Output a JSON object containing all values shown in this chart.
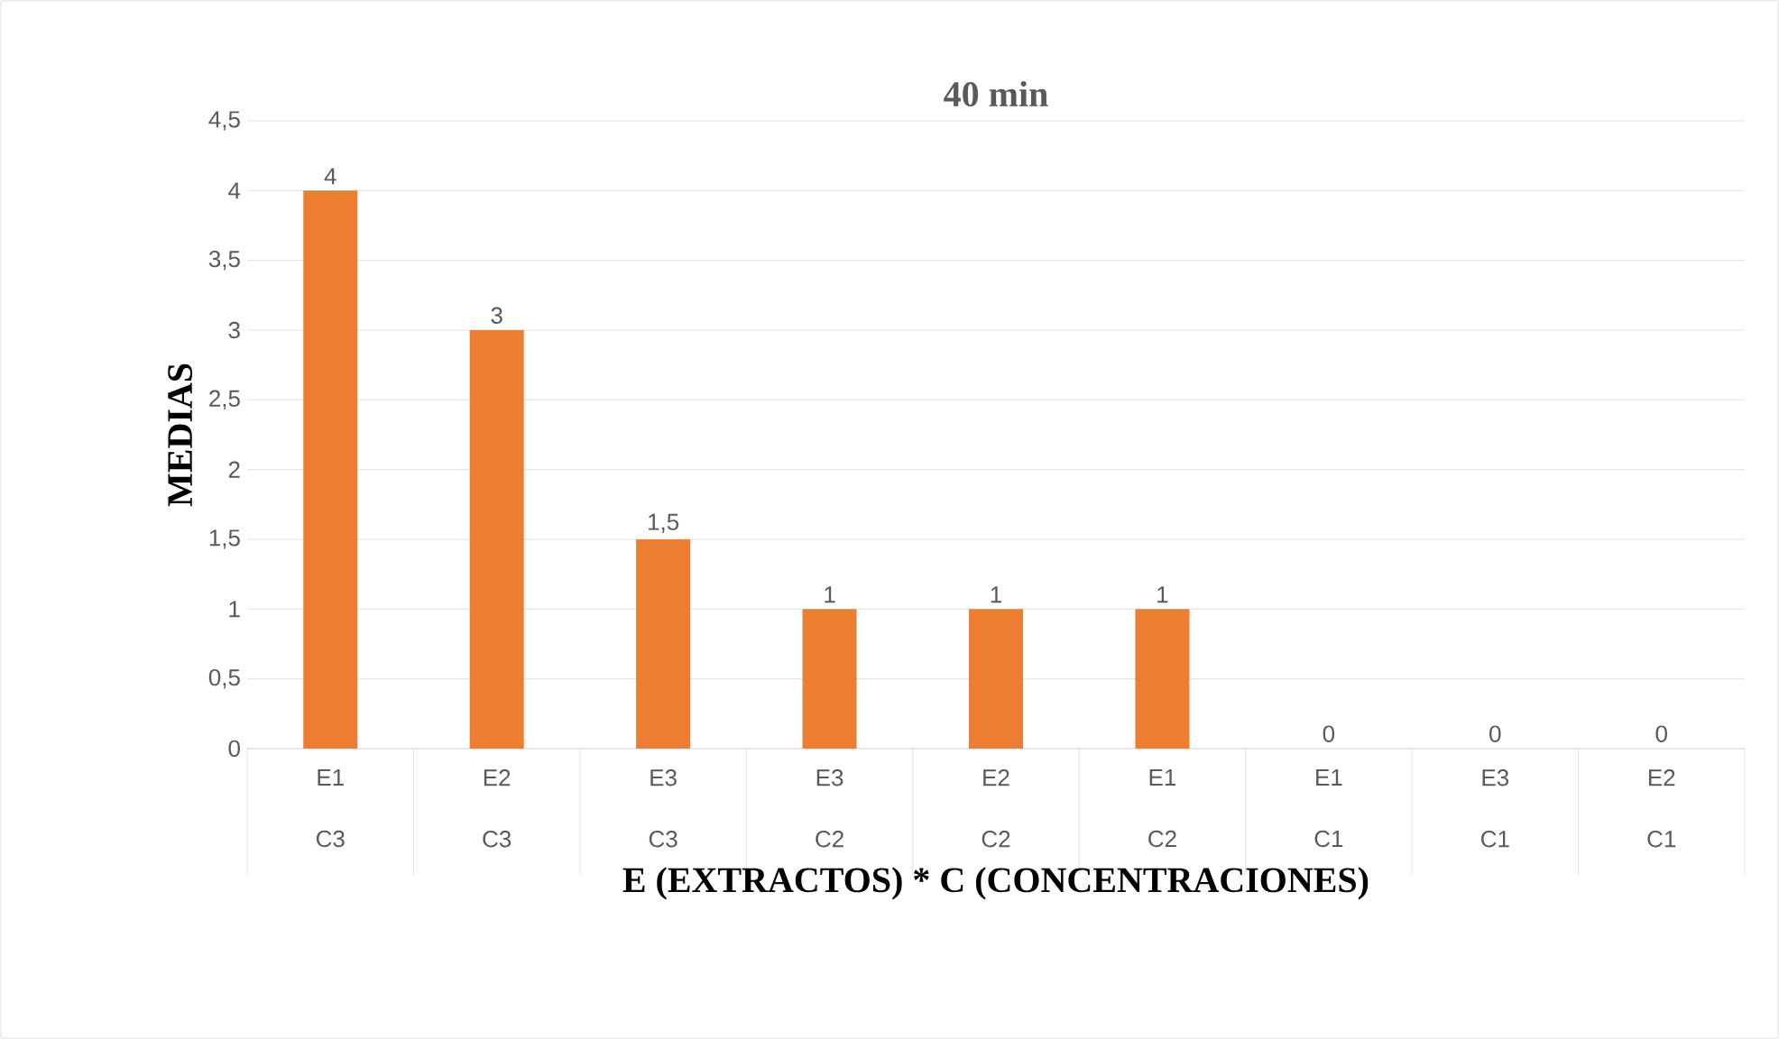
{
  "chart_data": {
    "type": "bar",
    "title": "40 min",
    "xlabel": "E (EXTRACTOS) * C (CONCENTRACIONES)",
    "ylabel": "MEDIAS",
    "categories": [
      "E1 C3",
      "E2 C3",
      "E3 C3",
      "E3 C2",
      "E2 C2",
      "E1 C2",
      "E1 C1",
      "E3 C1",
      "E2 C1"
    ],
    "values": [
      4,
      3,
      1.5,
      1,
      1,
      1,
      0,
      0,
      0
    ],
    "value_labels": [
      "4",
      "3",
      "1,5",
      "1",
      "1",
      "1",
      "0",
      "0",
      "0"
    ],
    "color": "#ed7d31",
    "ylim": [
      0,
      4.5
    ],
    "yticks": [
      0,
      {
        "value": 0.5,
        "label": "0,5"
      },
      1,
      {
        "value": 1.5,
        "label": "1,5"
      },
      2,
      {
        "value": 2.5,
        "label": "2,5"
      },
      3,
      {
        "value": 3.5,
        "label": "3,5"
      },
      4,
      {
        "value": 4.5,
        "label": "4,5"
      }
    ],
    "grid": "y"
  }
}
